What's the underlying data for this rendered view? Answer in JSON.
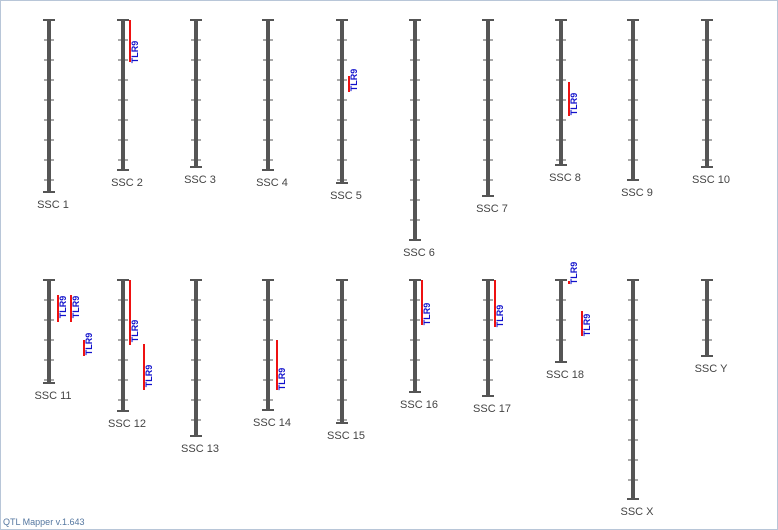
{
  "app": {
    "footer": "QTL Mapper v.1.643"
  },
  "colors": {
    "chromosome": "#555555",
    "qtl_bar": "#ee1111",
    "qtl_label": "#1111cc",
    "chrom_label": "#444444",
    "frame": "#b8c6d8"
  },
  "chromosomes": [
    {
      "name": "SSC 1",
      "qtls": []
    },
    {
      "name": "SSC 2",
      "qtls": [
        {
          "label": "TLR9"
        }
      ]
    },
    {
      "name": "SSC 3",
      "qtls": []
    },
    {
      "name": "SSC 4",
      "qtls": []
    },
    {
      "name": "SSC 5",
      "qtls": [
        {
          "label": "TLR9"
        }
      ]
    },
    {
      "name": "SSC 6",
      "qtls": []
    },
    {
      "name": "SSC 7",
      "qtls": []
    },
    {
      "name": "SSC 8",
      "qtls": [
        {
          "label": "TLR9"
        }
      ]
    },
    {
      "name": "SSC 9",
      "qtls": []
    },
    {
      "name": "SSC 10",
      "qtls": []
    },
    {
      "name": "SSC 11",
      "qtls": [
        {
          "label": "TLR9"
        },
        {
          "label": "TLR9"
        },
        {
          "label": "TLR9"
        }
      ]
    },
    {
      "name": "SSC 12",
      "qtls": [
        {
          "label": "TLR9"
        },
        {
          "label": "TLR9"
        }
      ]
    },
    {
      "name": "SSC 13",
      "qtls": []
    },
    {
      "name": "SSC 14",
      "qtls": [
        {
          "label": "TLR9"
        }
      ]
    },
    {
      "name": "SSC 15",
      "qtls": []
    },
    {
      "name": "SSC 16",
      "qtls": [
        {
          "label": "TLR9"
        }
      ]
    },
    {
      "name": "SSC 17",
      "qtls": [
        {
          "label": "TLR9"
        }
      ]
    },
    {
      "name": "SSC 18",
      "qtls": [
        {
          "label": "TLR9"
        },
        {
          "label": "TLR9"
        }
      ]
    },
    {
      "name": "SSC X",
      "qtls": []
    },
    {
      "name": "SSC Y",
      "qtls": []
    }
  ]
}
